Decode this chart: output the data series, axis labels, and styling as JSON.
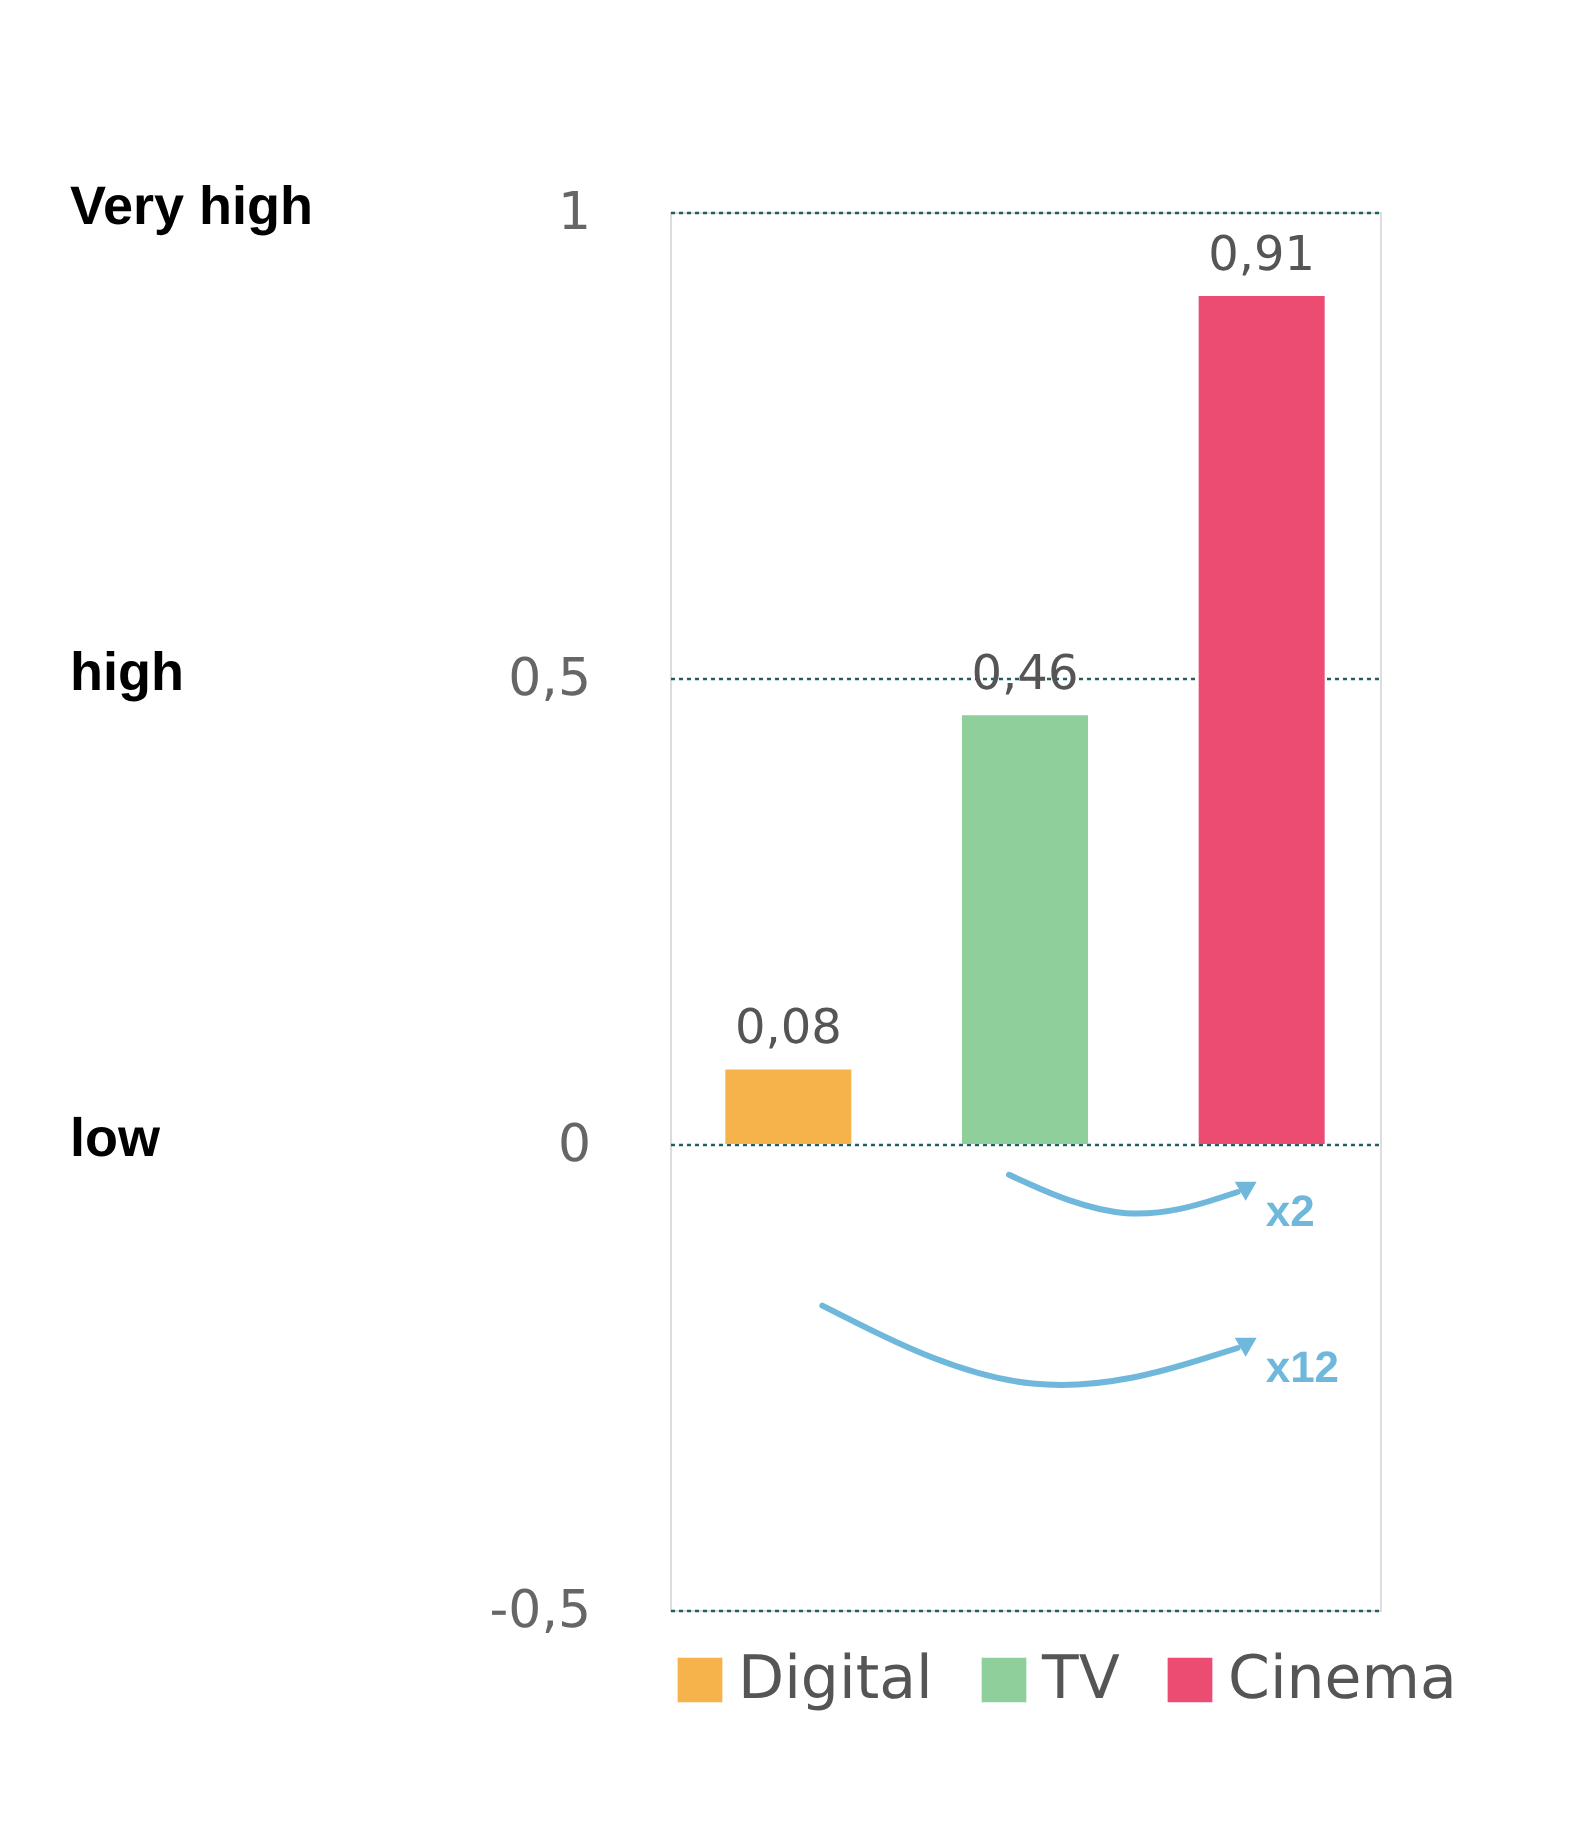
{
  "chart_data": {
    "type": "bar",
    "categories": [
      null,
      null,
      null
    ],
    "series": [
      {
        "name": "Digital",
        "color": "#f6b24b",
        "values": [
          0.08,
          null,
          null
        ]
      },
      {
        "name": "TV",
        "color": "#8fcf9b",
        "values": [
          null,
          0.46,
          null
        ]
      },
      {
        "name": "Cinema",
        "color": "#ec4b72",
        "values": [
          null,
          null,
          0.91
        ]
      }
    ],
    "value_labels": [
      "0,08",
      "0,46",
      "0,91"
    ],
    "ylim": [
      -0.5,
      1
    ],
    "yticks": [
      {
        "value": -0.5,
        "label": "-0,5"
      },
      0,
      {
        "value": 0.5,
        "label": "0,5"
      },
      1
    ],
    "grid": "y",
    "legend": "bottom",
    "tick_labels": "y",
    "annotations": [
      "Very high",
      "high",
      "low",
      "x2",
      "x12"
    ]
  }
}
